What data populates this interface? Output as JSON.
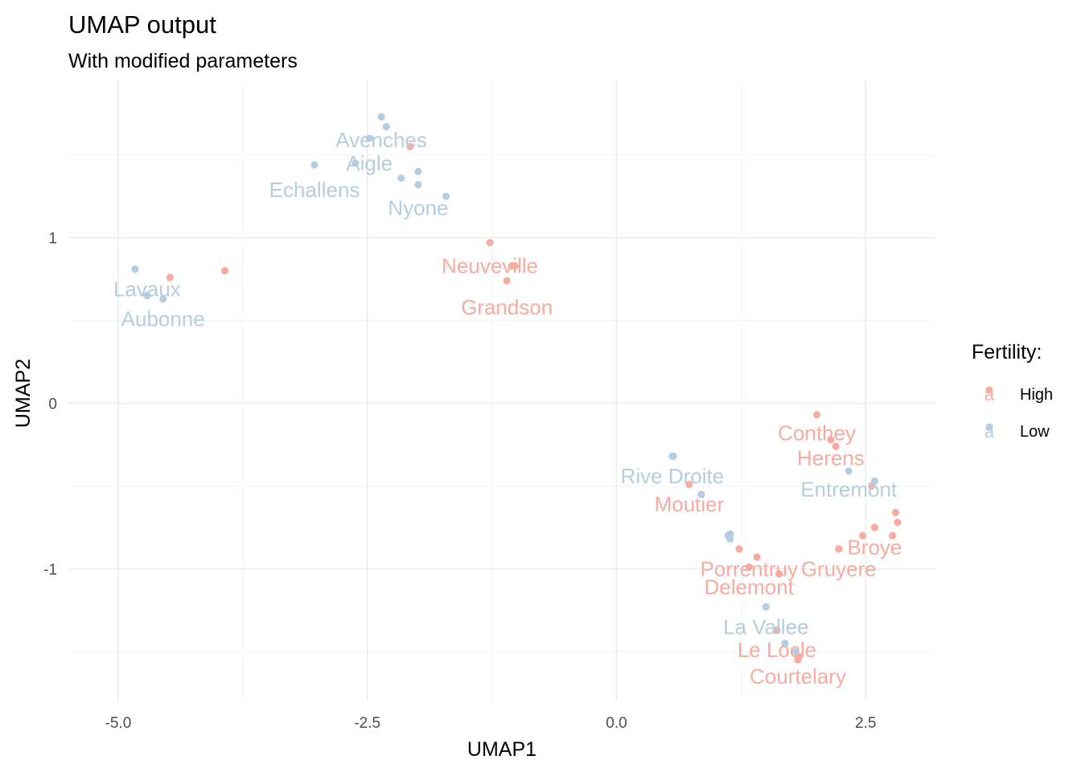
{
  "chart_data": {
    "type": "scatter",
    "title": "UMAP output",
    "subtitle": "With modified parameters",
    "xlabel": "UMAP1",
    "ylabel": "UMAP2",
    "xlim": [
      -5.5,
      3.2
    ],
    "ylim": [
      -1.8,
      1.95
    ],
    "x_ticks": [
      -5.0,
      -2.5,
      0.0,
      2.5
    ],
    "x_tick_labels": [
      "-5.0",
      "-2.5",
      "0.0",
      "2.5"
    ],
    "y_ticks": [
      -1,
      0,
      1
    ],
    "y_tick_labels": [
      "-1",
      "0",
      "1"
    ],
    "grid": true,
    "legend": {
      "title": "Fertility:",
      "position": "right",
      "glyph": "a",
      "entries": [
        {
          "name": "High",
          "color": "#f8aba0"
        },
        {
          "name": "Low",
          "color": "#b4cde3"
        }
      ]
    },
    "series": [
      {
        "name": "High",
        "color": "#f8aba0",
        "points": [
          [
            -2.07,
            1.55
          ],
          [
            -1.27,
            0.97
          ],
          [
            -1.05,
            0.83
          ],
          [
            -1.02,
            0.83
          ],
          [
            -1.1,
            0.74
          ],
          [
            -4.48,
            0.76
          ],
          [
            -3.93,
            0.8
          ],
          [
            2.01,
            -0.07
          ],
          [
            2.15,
            -0.22
          ],
          [
            2.2,
            -0.26
          ],
          [
            2.56,
            -0.5
          ],
          [
            0.73,
            -0.49
          ],
          [
            2.8,
            -0.66
          ],
          [
            2.82,
            -0.72
          ],
          [
            2.59,
            -0.75
          ],
          [
            2.47,
            -0.8
          ],
          [
            2.77,
            -0.8
          ],
          [
            2.23,
            -0.88
          ],
          [
            1.23,
            -0.88
          ],
          [
            1.41,
            -0.93
          ],
          [
            1.33,
            -0.99
          ],
          [
            1.63,
            -1.03
          ],
          [
            1.61,
            -1.37
          ],
          [
            1.83,
            -1.53
          ],
          [
            1.82,
            -1.55
          ]
        ],
        "labels": [
          {
            "text": "Neuveville",
            "x": -1.27,
            "y": 0.83
          },
          {
            "text": "Grandson",
            "x": -1.1,
            "y": 0.58
          },
          {
            "text": "Conthey",
            "x": 2.01,
            "y": -0.18
          },
          {
            "text": "Herens",
            "x": 2.15,
            "y": -0.33
          },
          {
            "text": "Moutier",
            "x": 0.73,
            "y": -0.61
          },
          {
            "text": "Broye",
            "x": 2.59,
            "y": -0.87
          },
          {
            "text": "Porrentruy",
            "x": 1.33,
            "y": -1.0
          },
          {
            "text": "Gruyere",
            "x": 2.23,
            "y": -1.0
          },
          {
            "text": "Delemont",
            "x": 1.33,
            "y": -1.11
          },
          {
            "text": "Le Locle",
            "x": 1.61,
            "y": -1.49
          },
          {
            "text": "Courtelary",
            "x": 1.82,
            "y": -1.65
          }
        ]
      },
      {
        "name": "Low",
        "color": "#b4cde3",
        "points": [
          [
            -2.36,
            1.73
          ],
          [
            -2.31,
            1.67
          ],
          [
            -2.48,
            1.6
          ],
          [
            -2.62,
            1.45
          ],
          [
            -3.03,
            1.44
          ],
          [
            -2.16,
            1.36
          ],
          [
            -1.99,
            1.4
          ],
          [
            -1.99,
            1.32
          ],
          [
            -1.71,
            1.25
          ],
          [
            -4.83,
            0.81
          ],
          [
            -4.71,
            0.65
          ],
          [
            -4.55,
            0.63
          ],
          [
            0.56,
            -0.32
          ],
          [
            0.57,
            -0.32
          ],
          [
            0.85,
            -0.55
          ],
          [
            2.33,
            -0.41
          ],
          [
            2.59,
            -0.47
          ],
          [
            1.14,
            -0.79
          ],
          [
            1.14,
            -0.82
          ],
          [
            1.12,
            -0.8
          ],
          [
            1.5,
            -1.23
          ],
          [
            1.69,
            -1.45
          ],
          [
            1.8,
            -1.5
          ]
        ],
        "labels": [
          {
            "text": "Avenches",
            "x": -2.36,
            "y": 1.59
          },
          {
            "text": "Aigle",
            "x": -2.48,
            "y": 1.45
          },
          {
            "text": "Echallens",
            "x": -3.03,
            "y": 1.29
          },
          {
            "text": "Nyone",
            "x": -1.99,
            "y": 1.18
          },
          {
            "text": "Lavaux",
            "x": -4.71,
            "y": 0.69
          },
          {
            "text": "Aubonne",
            "x": -4.55,
            "y": 0.51
          },
          {
            "text": "Rive Droite",
            "x": 0.56,
            "y": -0.44
          },
          {
            "text": "Entremont",
            "x": 2.33,
            "y": -0.52
          },
          {
            "text": "La Vallee",
            "x": 1.5,
            "y": -1.35
          }
        ]
      }
    ]
  }
}
